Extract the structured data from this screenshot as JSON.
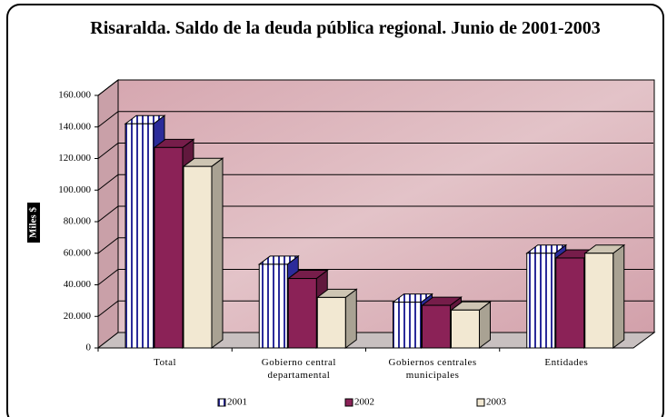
{
  "chart_data": {
    "type": "bar3d",
    "title": "Risaralda. Saldo de la deuda pública regional. Junio de 2001-2003",
    "y_label": "Miles $",
    "categories": [
      "Total",
      "Gobierno central departamental",
      "Gobiernos centrales municipales",
      "Entidades"
    ],
    "series": [
      {
        "name": "2001",
        "color": "#2b2b9a",
        "values": [
          142000,
          53000,
          29000,
          60000
        ]
      },
      {
        "name": "2002",
        "color": "#8b2257",
        "values": [
          127000,
          44000,
          27000,
          57000
        ]
      },
      {
        "name": "2003",
        "color": "#f2e8d2",
        "values": [
          115000,
          32000,
          24000,
          60000
        ]
      }
    ],
    "ylim": [
      0,
      160000
    ],
    "yticks": [
      0,
      {
        "value": 20000,
        "label": "20.000"
      },
      {
        "value": 40000,
        "label": "40.000"
      },
      {
        "value": 60000,
        "label": "60.000"
      },
      {
        "value": 80000,
        "label": "80.000"
      },
      {
        "value": 100000,
        "label": "100.000"
      },
      {
        "value": 120000,
        "label": "120.000"
      },
      {
        "value": 140000,
        "label": "140.000"
      },
      {
        "value": 160000,
        "label": "160.000"
      }
    ],
    "grid": true
  }
}
